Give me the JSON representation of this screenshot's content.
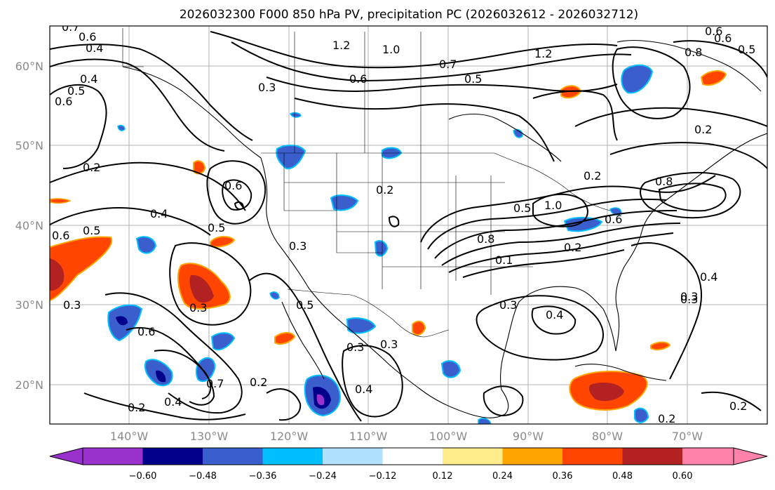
{
  "title": "2026032300 F000 850 hPa PV, precipitation PC (2026032612 - 2026032712)",
  "lat_labels": [
    "60°N",
    "50°N",
    "40°N",
    "30°N",
    "20°N"
  ],
  "lon_labels": [
    "140°W",
    "130°W",
    "120°W",
    "110°W",
    "100°W",
    "90°W",
    "80°W",
    "70°W"
  ],
  "colorbar": {
    "ticks": [
      "−0.60",
      "−0.48",
      "−0.36",
      "−0.24",
      "−0.12",
      "0.12",
      "0.24",
      "0.36",
      "0.48",
      "0.60"
    ],
    "colors": [
      "#9932cc",
      "#00008b",
      "#3a5fcd",
      "#00bfff",
      "#b0e2ff",
      "#ffffff",
      "#ffec8b",
      "#ffa500",
      "#ff4500",
      "#b22222",
      "#ff82ab"
    ]
  },
  "contour_labels": [
    "0.7",
    "0.6",
    "0.4",
    "0.6",
    "0.5",
    "0.4",
    "1.2",
    "1.0",
    "0.6",
    "0.7",
    "0.5",
    "1.2",
    "0.3",
    "0.6",
    "0.8",
    "0.6",
    "0.5",
    "0.2",
    "0.2",
    "0.2",
    "0.6",
    "0.4",
    "0.5",
    "0.6",
    "0.5",
    "0.3",
    "0.2",
    "0.5",
    "0.8",
    "1.0",
    "0.1",
    "0.2",
    "0.6",
    "0.8",
    "0.3",
    "0.4",
    "0.3",
    "0.5",
    "0.3",
    "0.3",
    "0.3",
    "0.4",
    "0.3",
    "0.6",
    "0.7",
    "0.4",
    "0.2",
    "0.2",
    "0.4",
    "0.3",
    "0.2",
    "0.2"
  ]
}
